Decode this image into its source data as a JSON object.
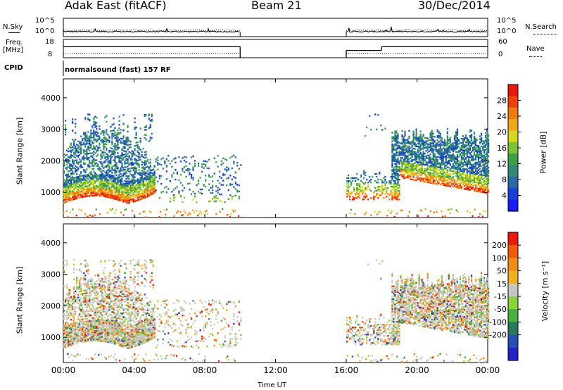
{
  "header": {
    "station": "Adak East (fitACF)",
    "beam": "Beam 21",
    "date": "30/Dec/2014"
  },
  "labels": {
    "nsky": "N.Sky",
    "nsky_top": "10^5",
    "nsky_bottom": "10^0",
    "freq_top": "Freq.",
    "freq_unit": "[MHz]",
    "freq_hi": "18",
    "freq_lo": "8",
    "cpid": "CPID",
    "cpid_text": "normalsound (fast) 157 RF",
    "nsearch": "N.Search",
    "nsearch_top": "10^5",
    "nsearch_bottom": "10^0",
    "nave": "Nave",
    "nave_hi": "60",
    "nave_lo": "0",
    "slant_range": "Slant Range [km]",
    "power_label": "Power [dB]",
    "velocity_label": "Velocity [m s⁻¹]",
    "time_ut": "Time UT"
  },
  "chart_data": [
    {
      "type": "line",
      "name": "nsky-nsearch",
      "x_range_hours": [
        0,
        24
      ],
      "gap_hours": [
        10,
        16
      ],
      "nsky_level": 1.2,
      "ylim_log10": [
        0,
        5
      ],
      "scale": "log"
    },
    {
      "type": "line",
      "name": "frequency-nave",
      "freq_mhz_segments": [
        {
          "x": [
            0,
            10
          ],
          "y": 14
        },
        {
          "x": [
            16,
            18
          ],
          "y": 12
        },
        {
          "x": [
            18,
            24
          ],
          "y": 14
        }
      ],
      "nave_level": 8,
      "freq_ylim": [
        8,
        18
      ],
      "nave_ylim": [
        0,
        60
      ]
    },
    {
      "type": "heatmap",
      "name": "power",
      "xlabel": "",
      "ylabel": "Slant Range [km]",
      "y_ticks": [
        "1000",
        "2000",
        "3000",
        "4000"
      ],
      "ylim": [
        200,
        4600
      ],
      "x_ticks": [
        "00:00",
        "04:00",
        "08:00",
        "12:00",
        "16:00",
        "20:00",
        "00:00"
      ],
      "colorbar": {
        "label": "Power [dB]",
        "ticks": [
          "4",
          "8",
          "12",
          "16",
          "20",
          "24",
          "28"
        ],
        "colors": [
          "#1a1aff",
          "#1a3fd6",
          "#2a68a8",
          "#2f8a78",
          "#3e9f44",
          "#7cc43a",
          "#d6d61e",
          "#f0a818",
          "#f07a10",
          "#f0400a",
          "#e81a0a"
        ]
      }
    },
    {
      "type": "heatmap",
      "name": "velocity",
      "ylabel": "Slant Range [km]",
      "y_ticks": [
        "1000",
        "2000",
        "3000",
        "4000"
      ],
      "ylim": [
        200,
        4600
      ],
      "x_ticks": [
        "00:00",
        "04:00",
        "08:00",
        "12:00",
        "16:00",
        "20:00",
        "00:00"
      ],
      "colorbar": {
        "label": "Velocity [m s⁻¹]",
        "ticks": [
          "200",
          "100",
          "50",
          "15",
          "-15",
          "-50",
          "-100",
          "-200"
        ],
        "colors": [
          "#2323c8",
          "#2850b4",
          "#2a7a5a",
          "#48b040",
          "#8ad43a",
          "#c6c6c2",
          "#f0b020",
          "#f08c14",
          "#f05c0c",
          "#e81a0a"
        ]
      }
    }
  ]
}
